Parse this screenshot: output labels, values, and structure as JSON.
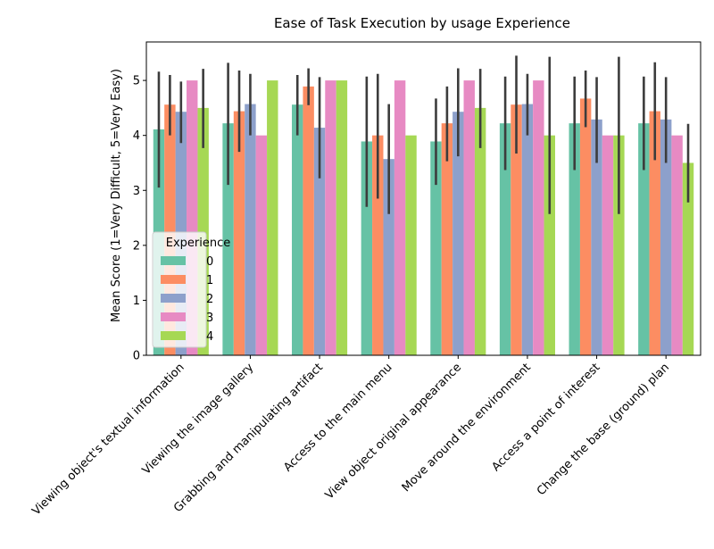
{
  "chart_data": {
    "type": "bar",
    "title": "Ease of Task Execution by usage Experience",
    "xlabel": "",
    "ylabel": "Mean Score (1=Very Difficult, 5=Very Easy)",
    "ylim": [
      0,
      5.7
    ],
    "yticks": [
      0,
      1,
      2,
      3,
      4,
      5
    ],
    "grid": false,
    "legend_title": "Experience",
    "legend_position": "lower-left",
    "categories": [
      "Viewing object's textual information",
      "Viewing the image gallery",
      "Grabbing and manipulating artifact",
      "Access to the main menu",
      "View object original appearance",
      "Move around the environment",
      "Access a point of interest",
      "Change the base (ground) plan"
    ],
    "series": [
      {
        "name": "0",
        "color": "#66c2a5",
        "values": [
          4.11,
          4.22,
          4.56,
          3.89,
          3.89,
          4.22,
          4.22,
          4.22
        ],
        "ci_low": [
          3.05,
          3.1,
          4.0,
          2.7,
          3.1,
          3.37,
          3.37,
          3.37
        ],
        "ci_high": [
          5.16,
          5.32,
          5.1,
          5.07,
          4.67,
          5.07,
          5.07,
          5.07
        ]
      },
      {
        "name": "1",
        "color": "#fc8d62",
        "values": [
          4.56,
          4.44,
          4.89,
          4.0,
          4.22,
          4.56,
          4.67,
          4.44
        ],
        "ci_low": [
          4.0,
          3.7,
          4.55,
          2.85,
          3.53,
          3.67,
          4.15,
          3.55
        ],
        "ci_high": [
          5.1,
          5.18,
          5.22,
          5.12,
          4.89,
          5.45,
          5.18,
          5.33
        ]
      },
      {
        "name": "2",
        "color": "#8da0cb",
        "values": [
          4.43,
          4.57,
          4.14,
          3.57,
          4.43,
          4.57,
          4.29,
          4.29
        ],
        "ci_low": [
          3.86,
          4.0,
          3.22,
          2.57,
          3.62,
          4.0,
          3.5,
          3.5
        ],
        "ci_high": [
          4.98,
          5.12,
          5.06,
          4.57,
          5.22,
          5.12,
          5.06,
          5.06
        ]
      },
      {
        "name": "3",
        "color": "#e78ac3",
        "values": [
          5.0,
          4.0,
          5.0,
          5.0,
          5.0,
          5.0,
          4.0,
          4.0
        ],
        "ci_low": [
          5.0,
          4.0,
          5.0,
          5.0,
          5.0,
          5.0,
          4.0,
          4.0
        ],
        "ci_high": [
          5.0,
          4.0,
          5.0,
          5.0,
          5.0,
          5.0,
          4.0,
          4.0
        ]
      },
      {
        "name": "4",
        "color": "#a6d854",
        "values": [
          4.5,
          5.0,
          5.0,
          4.0,
          4.5,
          4.0,
          4.0,
          3.5
        ],
        "ci_low": [
          3.77,
          5.0,
          5.0,
          4.0,
          3.77,
          2.57,
          2.57,
          2.78
        ],
        "ci_high": [
          5.21,
          5.0,
          5.0,
          4.0,
          5.21,
          5.43,
          5.43,
          4.21
        ]
      }
    ]
  }
}
